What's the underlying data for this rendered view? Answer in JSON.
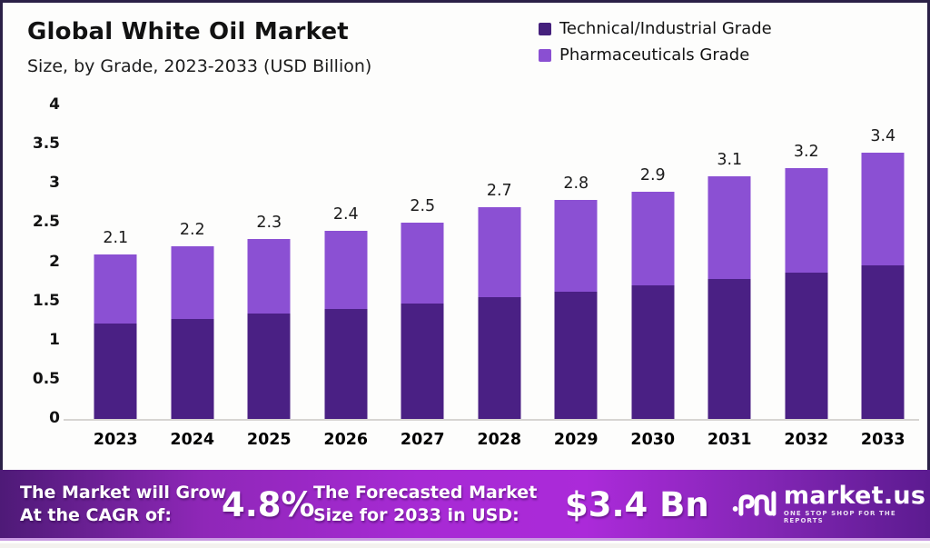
{
  "header": {
    "title": "Global White Oil Market",
    "subtitle": "Size, by Grade, 2023-2033 (USD Billion)"
  },
  "legend": {
    "items": [
      {
        "label": "Technical/Industrial Grade",
        "color": "#45207c"
      },
      {
        "label": "Pharmaceuticals Grade",
        "color": "#8a4fd2"
      }
    ]
  },
  "chart_data": {
    "type": "bar",
    "stacked": true,
    "title": "Global White Oil Market",
    "subtitle": "Size, by Grade, 2023-2033 (USD Billion)",
    "xlabel": "",
    "ylabel": "",
    "ylim": [
      0,
      4
    ],
    "yticks": [
      "4",
      "3.5",
      "3",
      "2.5",
      "2",
      "1.5",
      "1",
      "0.5",
      "0"
    ],
    "grid": false,
    "legend_position": "top-right",
    "categories": [
      "2023",
      "2024",
      "2025",
      "2026",
      "2027",
      "2028",
      "2029",
      "2030",
      "2031",
      "2032",
      "2033"
    ],
    "series": [
      {
        "name": "Technical/Industrial Grade",
        "color": "#4a2084",
        "values": [
          1.22,
          1.28,
          1.34,
          1.4,
          1.47,
          1.55,
          1.62,
          1.7,
          1.78,
          1.87,
          1.96
        ]
      },
      {
        "name": "Pharmaceuticals Grade",
        "color": "#8b50d3",
        "values": [
          0.88,
          0.92,
          0.96,
          1.0,
          1.03,
          1.15,
          1.18,
          1.2,
          1.32,
          1.33,
          1.44
        ]
      }
    ],
    "totals": [
      "2.1",
      "2.2",
      "2.3",
      "2.4",
      "2.5",
      "2.7",
      "2.8",
      "2.9",
      "3.1",
      "3.2",
      "3.4"
    ]
  },
  "banner": {
    "left_line1": "The Market will Grow",
    "left_line2": "At the CAGR of:",
    "cagr": "4.8%",
    "mid_line1": "The Forecasted Market",
    "mid_line2": "Size for 2033 in USD:",
    "forecast_value": "$3.4 Bn"
  },
  "logo": {
    "name": "market.us",
    "tagline": "ONE STOP SHOP FOR THE REPORTS"
  }
}
